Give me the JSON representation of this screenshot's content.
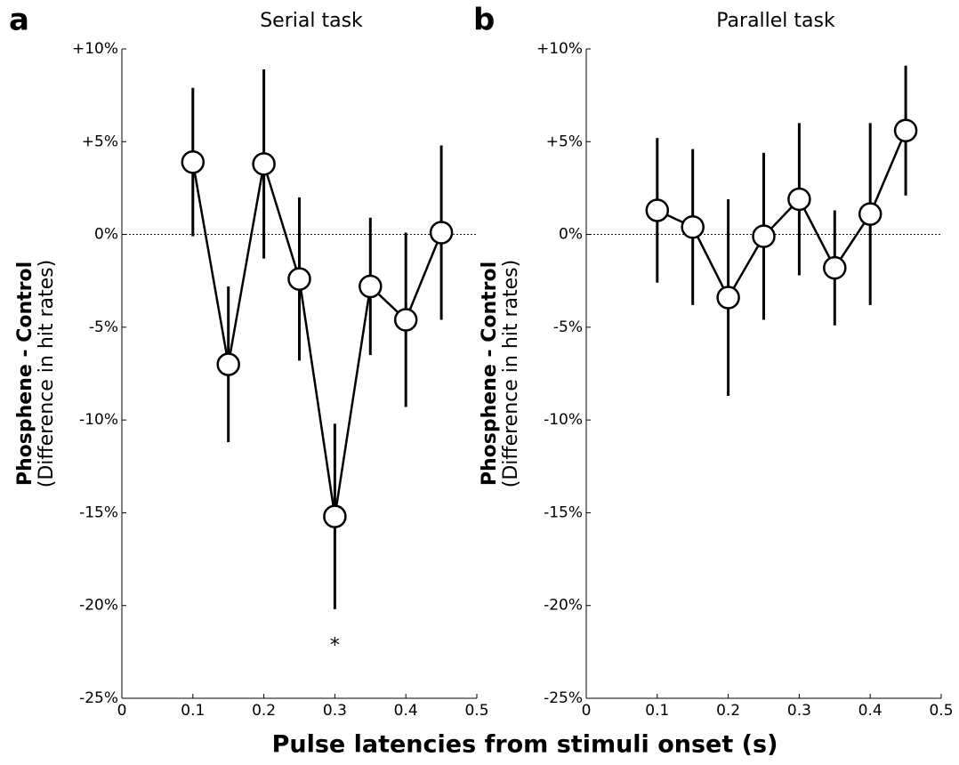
{
  "chart_data": [
    {
      "type": "line",
      "panel": "a",
      "title": "Serial task",
      "ylabel": [
        "Phosphene - Control",
        "(Difference in hit rates)"
      ],
      "x": [
        0.1,
        0.15,
        0.2,
        0.25,
        0.3,
        0.35,
        0.4,
        0.45
      ],
      "values": [
        3.9,
        -7.0,
        3.8,
        -2.4,
        -15.2,
        -2.8,
        -4.6,
        0.1
      ],
      "errors": [
        4.0,
        4.2,
        5.1,
        4.4,
        5.0,
        3.7,
        4.7,
        4.7
      ],
      "color": "#000000",
      "zero_line": true,
      "xlim": [
        0,
        0.5
      ],
      "xticks": [
        0,
        0.1,
        0.2,
        0.3,
        0.4,
        0.5
      ],
      "ylim": [
        -25,
        10
      ],
      "yticks": [
        {
          "value": 10,
          "label": "+10%"
        },
        {
          "value": 5,
          "label": "+5%"
        },
        {
          "value": 0,
          "label": "0%"
        },
        {
          "value": -5,
          "label": "-5%"
        },
        {
          "value": -10,
          "label": "-10%"
        },
        {
          "value": -15,
          "label": "-15%"
        },
        {
          "value": -20,
          "label": "-20%"
        },
        {
          "value": -25,
          "label": "-25%"
        }
      ],
      "annotations": [
        {
          "text": "*",
          "x": 0.3,
          "y": -22
        }
      ]
    },
    {
      "type": "line",
      "panel": "b",
      "title": "Parallel task",
      "ylabel": [
        "Phosphene - Control",
        "(Difference in hit rates)"
      ],
      "x": [
        0.1,
        0.15,
        0.2,
        0.25,
        0.3,
        0.35,
        0.4,
        0.45
      ],
      "values": [
        1.3,
        0.4,
        -3.4,
        -0.1,
        1.9,
        -1.8,
        1.1,
        5.6
      ],
      "errors": [
        3.9,
        4.2,
        5.3,
        4.5,
        4.1,
        3.1,
        4.9,
        3.5
      ],
      "color": "#000000",
      "zero_line": true,
      "xlim": [
        0,
        0.5
      ],
      "xticks": [
        0,
        0.1,
        0.2,
        0.3,
        0.4,
        0.5
      ],
      "ylim": [
        -25,
        10
      ],
      "yticks": [
        {
          "value": 10,
          "label": "+10%"
        },
        {
          "value": 5,
          "label": "+5%"
        },
        {
          "value": 0,
          "label": "0%"
        },
        {
          "value": -5,
          "label": "-5%"
        },
        {
          "value": -10,
          "label": "-10%"
        },
        {
          "value": -15,
          "label": "-15%"
        },
        {
          "value": -20,
          "label": "-20%"
        },
        {
          "value": -25,
          "label": "-25%"
        }
      ],
      "annotations": []
    }
  ],
  "xlabel": "Pulse latencies from stimuli onset (s)"
}
